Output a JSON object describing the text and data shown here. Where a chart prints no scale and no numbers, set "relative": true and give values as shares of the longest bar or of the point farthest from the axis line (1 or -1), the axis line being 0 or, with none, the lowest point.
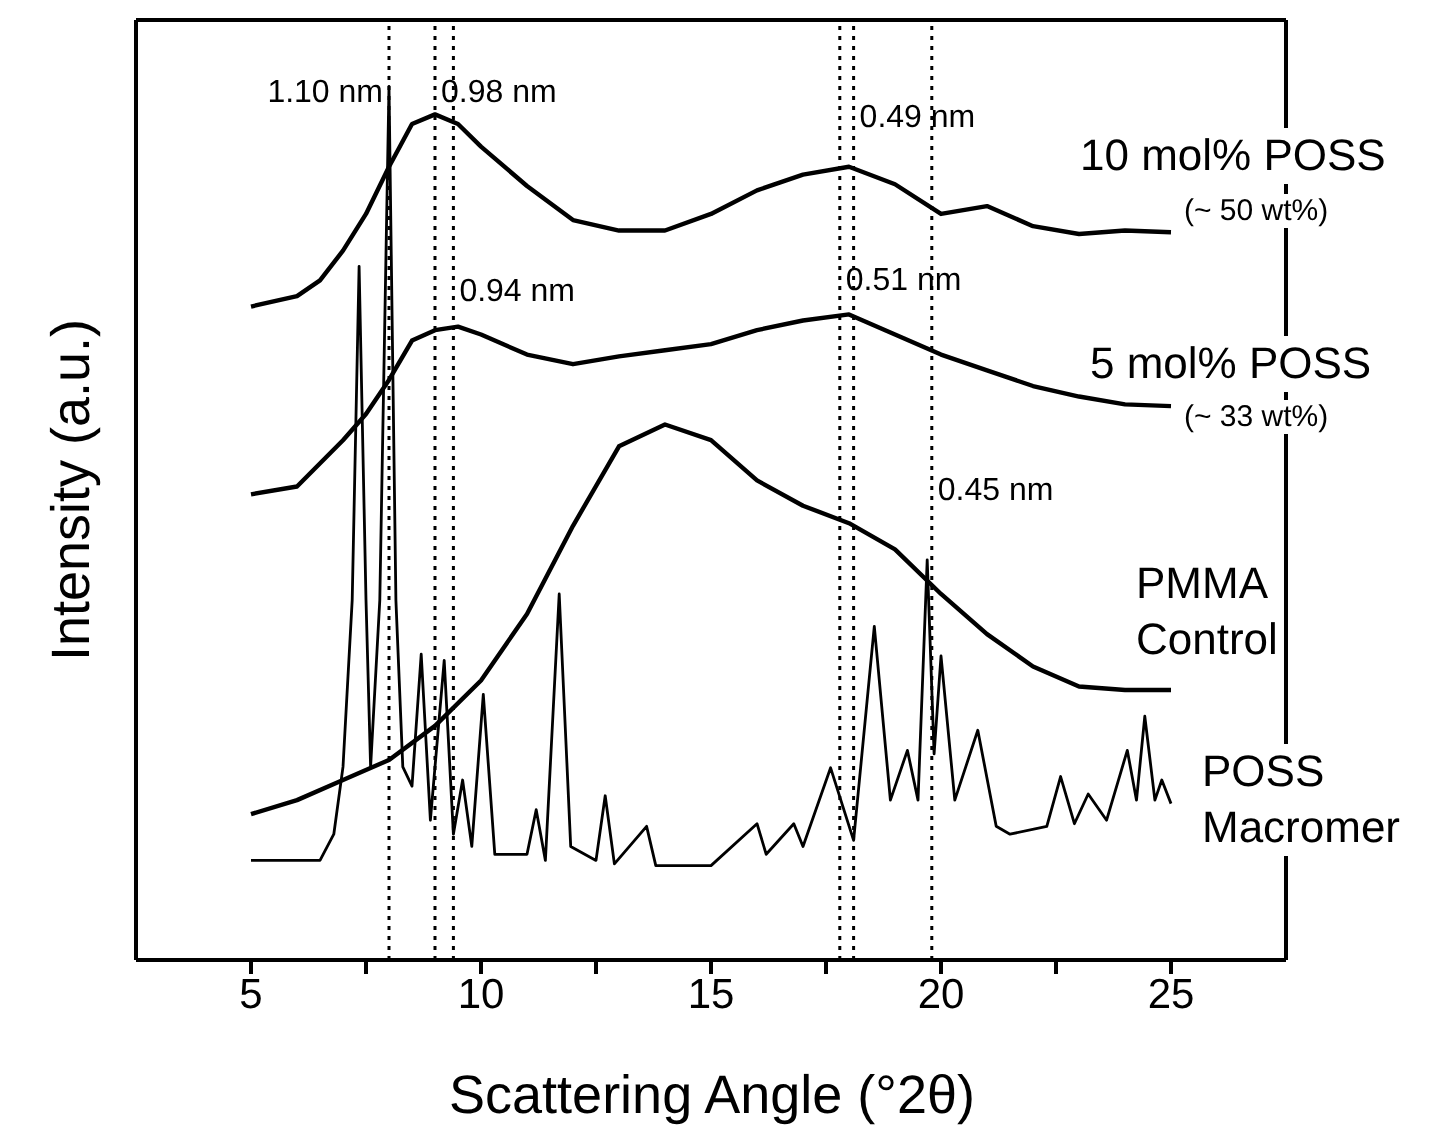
{
  "chart_data": {
    "type": "line",
    "relative": true,
    "xlabel": "Scattering Angle (°2θ)",
    "ylabel": "Intensity (a.u.)",
    "xlim": [
      2.5,
      27.5
    ],
    "xticks": [
      5,
      {
        "value": 7.5,
        "label": null
      },
      10,
      {
        "value": 12.5,
        "label": null
      },
      15,
      {
        "value": 17.5,
        "label": null
      },
      20,
      {
        "value": 22.5,
        "label": null
      },
      25
    ],
    "marker": "none",
    "line_style": "solid",
    "series": [
      {
        "name": "10 mol% POSS",
        "color": "#000000",
        "x": [
          5,
          6,
          6.5,
          7,
          7.5,
          8,
          8.5,
          9,
          9.5,
          10,
          11,
          12,
          13,
          14,
          15,
          16,
          17,
          18,
          19,
          20,
          21,
          22,
          23,
          24,
          25
        ],
        "values": [
          0.748,
          0.76,
          0.778,
          0.812,
          0.854,
          0.908,
          0.957,
          0.968,
          0.957,
          0.931,
          0.886,
          0.847,
          0.835,
          0.835,
          0.854,
          0.881,
          0.899,
          0.908,
          0.888,
          0.854,
          0.863,
          0.84,
          0.831,
          0.835,
          0.833
        ]
      },
      {
        "name": "5 mol% POSS",
        "color": "#000000",
        "x": [
          5,
          6,
          7,
          7.5,
          8,
          8.5,
          9,
          9.5,
          10,
          11,
          12,
          13,
          14,
          15,
          16,
          17,
          18,
          19,
          20,
          21,
          22,
          23,
          24,
          25
        ],
        "values": [
          0.533,
          0.542,
          0.595,
          0.625,
          0.664,
          0.709,
          0.721,
          0.725,
          0.716,
          0.693,
          0.682,
          0.691,
          0.698,
          0.705,
          0.721,
          0.732,
          0.739,
          0.716,
          0.693,
          0.675,
          0.657,
          0.645,
          0.636,
          0.634
        ]
      },
      {
        "name": "PMMA Control",
        "color": "#000000",
        "x": [
          5,
          6,
          7,
          8,
          9,
          10,
          11,
          12,
          13,
          14,
          15,
          16,
          17,
          18,
          19,
          20,
          21,
          22,
          23,
          24,
          25
        ],
        "values": [
          0.167,
          0.183,
          0.206,
          0.229,
          0.268,
          0.32,
          0.396,
          0.497,
          0.588,
          0.613,
          0.595,
          0.549,
          0.52,
          0.5,
          0.47,
          0.419,
          0.373,
          0.336,
          0.313,
          0.309,
          0.309
        ]
      },
      {
        "name": "POSS Macromer",
        "color": "#000000",
        "x": [
          5,
          6.5,
          6.8,
          7,
          7.2,
          7.35,
          7.5,
          7.6,
          7.8,
          8,
          8.15,
          8.3,
          8.5,
          8.7,
          8.9,
          9.2,
          9.4,
          9.6,
          9.8,
          10.05,
          10.3,
          11,
          11.2,
          11.4,
          11.7,
          11.95,
          12.5,
          12.7,
          12.9,
          13.6,
          13.8,
          15,
          16,
          16.2,
          16.8,
          17,
          17.6,
          18.1,
          18.55,
          18.9,
          19.27,
          19.5,
          19.7,
          19.85,
          20,
          20.3,
          20.8,
          21.2,
          21.5,
          22.3,
          22.6,
          22.9,
          23.2,
          23.6,
          24.05,
          24.25,
          24.43,
          24.65,
          24.8,
          25
        ],
        "values": [
          0.114,
          0.114,
          0.144,
          0.221,
          0.412,
          0.794,
          0.412,
          0.221,
          0.412,
          1.0,
          0.412,
          0.221,
          0.199,
          0.35,
          0.16,
          0.343,
          0.144,
          0.206,
          0.13,
          0.304,
          0.121,
          0.121,
          0.172,
          0.114,
          0.419,
          0.13,
          0.114,
          0.188,
          0.11,
          0.153,
          0.108,
          0.108,
          0.156,
          0.121,
          0.156,
          0.13,
          0.22,
          0.137,
          0.382,
          0.183,
          0.24,
          0.183,
          0.458,
          0.236,
          0.348,
          0.183,
          0.263,
          0.153,
          0.144,
          0.153,
          0.21,
          0.156,
          0.19,
          0.16,
          0.24,
          0.183,
          0.279,
          0.183,
          0.206,
          0.179
        ]
      }
    ],
    "ref_lines": [
      {
        "axis": "x",
        "value": 8.0,
        "color": "#000000",
        "line_style": "dotted"
      },
      {
        "axis": "x",
        "value": 9.0,
        "color": "#000000",
        "line_style": "dotted"
      },
      {
        "axis": "x",
        "value": 9.4,
        "color": "#000000",
        "line_style": "dotted"
      },
      {
        "axis": "x",
        "value": 18.1,
        "color": "#000000",
        "line_style": "dotted"
      },
      {
        "axis": "x",
        "value": 17.8,
        "color": "#000000",
        "line_style": "dotted"
      },
      {
        "axis": "x",
        "value": 19.8,
        "color": "#000000",
        "line_style": "dotted"
      }
    ],
    "annotations": [
      "(~ 50 wt%)",
      "(~ 33 wt%)",
      {
        "text": "1.10 nm",
        "x": 8.0,
        "y": 0.995
      },
      {
        "text": "0.98 nm",
        "x": 9.0,
        "y": 0.995
      },
      {
        "text": "0.49 nm",
        "x": 18.1,
        "y": 0.966
      },
      {
        "text": "0.94 nm",
        "x": 9.4,
        "y": 0.767
      },
      {
        "text": "0.51 nm",
        "x": 17.8,
        "y": 0.78
      },
      {
        "text": "0.45 nm",
        "x": 19.8,
        "y": 0.54
      }
    ]
  }
}
